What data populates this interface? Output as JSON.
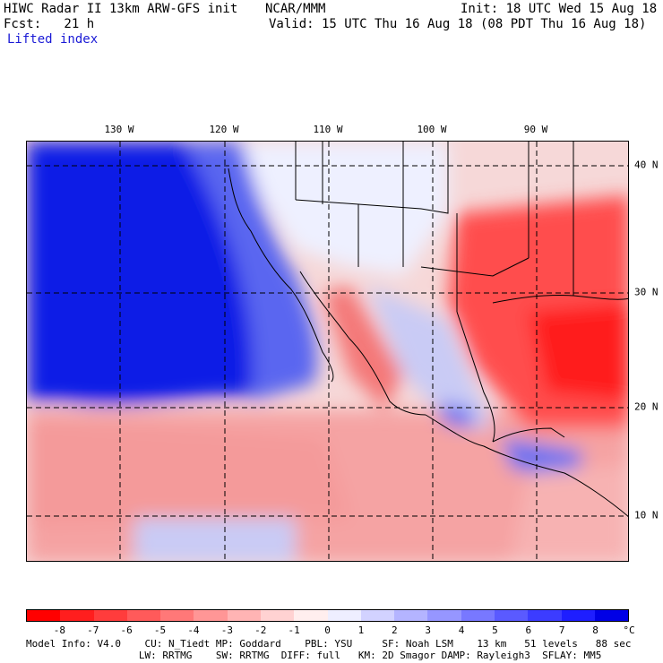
{
  "header": {
    "model_title": "HIWC Radar II 13km ARW-GFS init",
    "org": "NCAR/MMM",
    "init": "Init: 18 UTC Wed 15 Aug 18",
    "fcst": "Fcst:   21 h",
    "valid": "Valid: 15 UTC Thu 16 Aug 18 (08 PDT Thu 16 Aug 18)",
    "field": "Lifted index"
  },
  "map": {
    "lon_labels": [
      "130 W",
      "120 W",
      "110 W",
      "100 W",
      "90 W"
    ],
    "lat_labels": [
      "40 N",
      "30 N",
      "20 N",
      "10 N"
    ]
  },
  "colorbar": {
    "unit": "°C",
    "tick_labels": [
      "-8",
      "-7",
      "-6",
      "-5",
      "-4",
      "-3",
      "-2",
      "-1",
      "0",
      "1",
      "2",
      "3",
      "4",
      "5",
      "6",
      "7",
      "8"
    ],
    "colors": [
      "#ff0000",
      "#ff1e1e",
      "#ff3c3c",
      "#ff5a5a",
      "#ff7878",
      "#ff9696",
      "#ffb4b4",
      "#ffd2d2",
      "#ffeeee",
      "#eeeeff",
      "#d2d2ff",
      "#b4b4ff",
      "#9696ff",
      "#7878ff",
      "#5a5aff",
      "#3c3cff",
      "#1e1eff",
      "#0000e6"
    ]
  },
  "footer": {
    "line1": "Model Info: V4.0    CU: N_Tiedt MP: Goddard    PBL: YSU     SF: Noah LSM    13 km   51 levels   88 sec",
    "line2": "                   LW: RRTMG    SW: RRTMG  DIFF: full   KM: 2D Smagor DAMP: Rayleigh3  SFLAY: MM5"
  }
}
